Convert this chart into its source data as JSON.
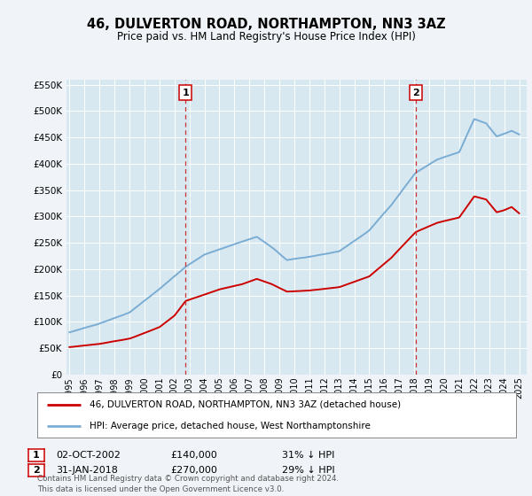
{
  "title": "46, DULVERTON ROAD, NORTHAMPTON, NN3 3AZ",
  "subtitle": "Price paid vs. HM Land Registry's House Price Index (HPI)",
  "legend_line1": "46, DULVERTON ROAD, NORTHAMPTON, NN3 3AZ (detached house)",
  "legend_line2": "HPI: Average price, detached house, West Northamptonshire",
  "transaction1_date": "02-OCT-2002",
  "transaction1_price": 140000,
  "transaction1_price_str": "£140,000",
  "transaction1_pct": "31% ↓ HPI",
  "transaction1_year": 2002.75,
  "transaction2_date": "31-JAN-2018",
  "transaction2_price": 270000,
  "transaction2_price_str": "£270,000",
  "transaction2_pct": "29% ↓ HPI",
  "transaction2_year": 2018.08,
  "red_color": "#cc0000",
  "blue_color": "#7aadd4",
  "dashed_color": "#cc3333",
  "background_color": "#f0f4f8",
  "plot_bg_color": "#d8e8f0",
  "footer": "Contains HM Land Registry data © Crown copyright and database right 2024.\nThis data is licensed under the Open Government Licence v3.0.",
  "ylim": [
    0,
    560000
  ],
  "xlim_start": 1994.8,
  "xlim_end": 2025.5,
  "yticks": [
    0,
    50000,
    100000,
    150000,
    200000,
    250000,
    300000,
    350000,
    400000,
    450000,
    500000,
    550000
  ],
  "xticks": [
    1995,
    1996,
    1997,
    1998,
    1999,
    2000,
    2001,
    2002,
    2003,
    2004,
    2005,
    2006,
    2007,
    2008,
    2009,
    2010,
    2011,
    2012,
    2013,
    2014,
    2015,
    2016,
    2017,
    2018,
    2019,
    2020,
    2021,
    2022,
    2023,
    2024,
    2025
  ],
  "hpi_pts_x": [
    1995.0,
    1997.0,
    1999.0,
    2001.0,
    2002.75,
    2004.0,
    2006.0,
    2007.5,
    2008.5,
    2009.5,
    2011.0,
    2013.0,
    2015.0,
    2016.5,
    2018.08,
    2019.5,
    2021.0,
    2022.0,
    2022.8,
    2023.5,
    2024.0,
    2024.5,
    2025.0
  ],
  "hpi_pts_y": [
    80000,
    97000,
    118000,
    162000,
    205000,
    228000,
    248000,
    262000,
    242000,
    218000,
    224000,
    235000,
    275000,
    325000,
    385000,
    410000,
    425000,
    488000,
    480000,
    455000,
    460000,
    465000,
    458000
  ],
  "red_pts_x": [
    1995.0,
    1997.0,
    1999.0,
    2001.0,
    2002.0,
    2002.75,
    2004.0,
    2005.0,
    2006.5,
    2007.5,
    2008.5,
    2009.5,
    2011.0,
    2013.0,
    2015.0,
    2016.5,
    2018.08,
    2019.5,
    2021.0,
    2022.0,
    2022.8,
    2023.5,
    2024.0,
    2024.5,
    2025.0
  ],
  "red_pts_y": [
    52000,
    58000,
    68000,
    90000,
    112000,
    140000,
    152000,
    162000,
    172000,
    182000,
    172000,
    158000,
    160000,
    166000,
    186000,
    222000,
    270000,
    288000,
    298000,
    338000,
    332000,
    308000,
    312000,
    318000,
    306000
  ]
}
